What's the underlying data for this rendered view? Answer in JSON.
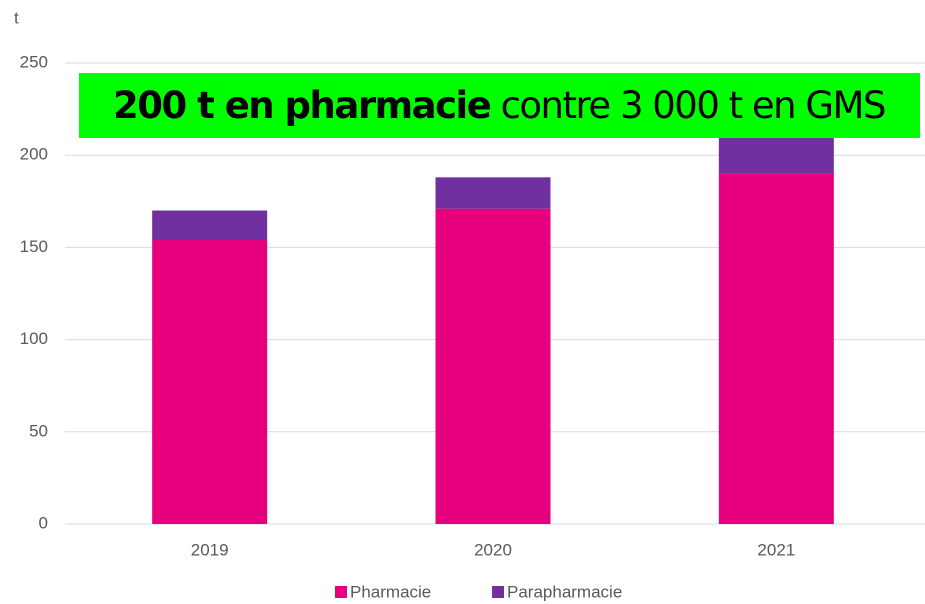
{
  "chart_data": {
    "type": "stacked_bar",
    "y_label": "t",
    "annotation": {
      "bold": "200 t  en pharmacie",
      "text": "contre 3 000 t en GMS",
      "color": "#00ff00"
    },
    "categories": [
      "2019",
      "2020",
      "2021"
    ],
    "series": [
      {
        "name": "Pharmacie",
        "color": "#e6007e",
        "values": [
          154,
          171,
          190
        ]
      },
      {
        "name": "Parapharmacie",
        "color": "#7030a0",
        "values": [
          16,
          17,
          20
        ]
      }
    ],
    "ylim": [
      0,
      250
    ],
    "yticks": [
      0,
      50,
      100,
      150,
      200,
      250
    ],
    "grid": true,
    "legend": "bottom"
  }
}
